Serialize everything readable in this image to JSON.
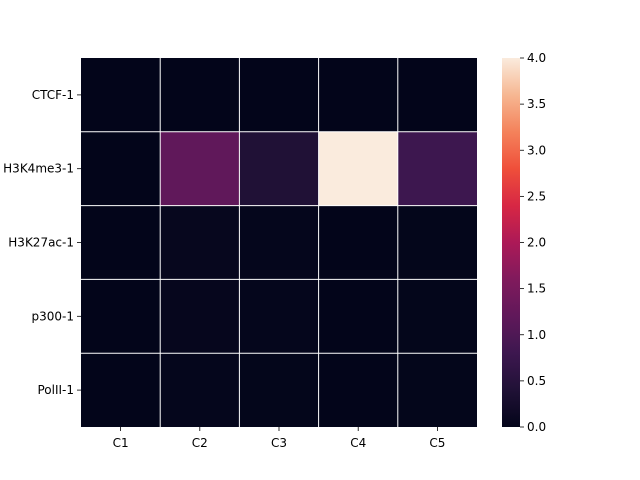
{
  "chart_data": {
    "type": "heatmap",
    "title": "",
    "xlabel": "",
    "ylabel": "",
    "columns": [
      "C1",
      "C2",
      "C3",
      "C4",
      "C5"
    ],
    "rows": [
      "CTCF-1",
      "H3K4me3-1",
      "H3K27ac-1",
      "p300-1",
      "PolII-1"
    ],
    "values": [
      [
        0.0,
        0.0,
        0.0,
        0.0,
        0.0
      ],
      [
        0.0,
        1.2,
        0.4,
        4.0,
        0.8
      ],
      [
        0.0,
        0.05,
        0.03,
        0.0,
        0.02
      ],
      [
        0.0,
        0.04,
        0.03,
        0.0,
        0.02
      ],
      [
        0.0,
        0.03,
        0.02,
        0.0,
        0.02
      ]
    ],
    "vmin": 0.0,
    "vmax": 4.0,
    "colormap": "rocket",
    "cell_border_color": "#ffffff",
    "colorbar": {
      "position": "right",
      "ticks": [
        0.0,
        0.5,
        1.0,
        1.5,
        2.0,
        2.5,
        3.0,
        3.5,
        4.0
      ],
      "tick_labels": [
        "0.0",
        "0.5",
        "1.0",
        "1.5",
        "2.0",
        "2.5",
        "3.0",
        "3.5",
        "4.0"
      ]
    }
  }
}
